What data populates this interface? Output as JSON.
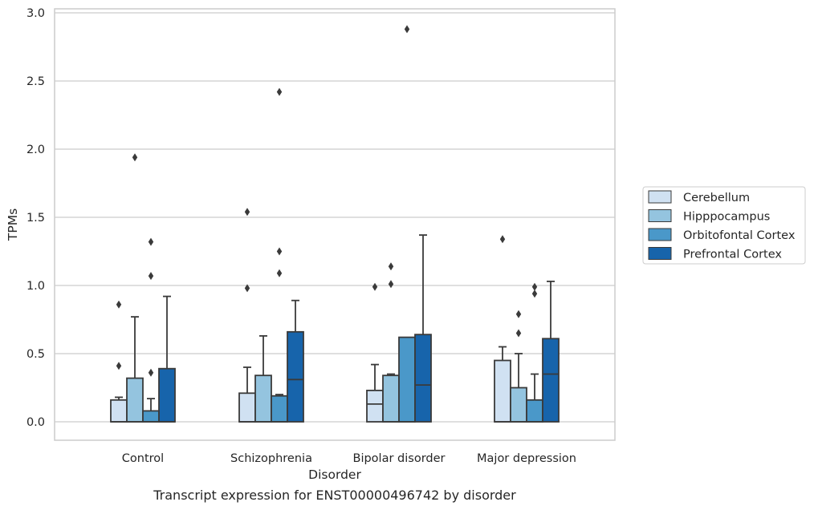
{
  "chart_data": {
    "type": "box",
    "title": "",
    "caption": "Transcript expression for ENST00000496742 by disorder",
    "xlabel": "Disorder",
    "ylabel": "TPMs",
    "ylim": [
      -0.14,
      3.03
    ],
    "yticks": [
      "0.0",
      "0.5",
      "1.0",
      "1.5",
      "2.0",
      "2.5",
      "3.0"
    ],
    "grid": "horizontal",
    "legend_position": "right",
    "categories": [
      "Control",
      "Schizophrenia",
      "Bipolar disorder",
      "Major depression"
    ],
    "series": [
      {
        "name": "Cerebellum",
        "color": "#d0e1f2",
        "boxes": [
          {
            "whisker_low": 0.0,
            "q1": 0.0,
            "median": 0.0,
            "q3": 0.16,
            "whisker_high": 0.18,
            "outliers": [
              0.41,
              0.86
            ]
          },
          {
            "whisker_low": 0.0,
            "q1": 0.0,
            "median": 0.0,
            "q3": 0.21,
            "whisker_high": 0.4,
            "outliers": [
              0.98,
              1.54
            ]
          },
          {
            "whisker_low": 0.0,
            "q1": 0.0,
            "median": 0.13,
            "q3": 0.23,
            "whisker_high": 0.42,
            "outliers": [
              0.99
            ]
          },
          {
            "whisker_low": 0.0,
            "q1": 0.0,
            "median": 0.0,
            "q3": 0.45,
            "whisker_high": 0.55,
            "outliers": [
              1.34
            ]
          }
        ]
      },
      {
        "name": "Hipppocampus",
        "color": "#94c4df",
        "boxes": [
          {
            "whisker_low": 0.0,
            "q1": 0.0,
            "median": 0.0,
            "q3": 0.32,
            "whisker_high": 0.77,
            "outliers": [
              1.94
            ]
          },
          {
            "whisker_low": 0.0,
            "q1": 0.0,
            "median": 0.0,
            "q3": 0.34,
            "whisker_high": 0.63,
            "outliers": []
          },
          {
            "whisker_low": 0.0,
            "q1": 0.0,
            "median": 0.0,
            "q3": 0.34,
            "whisker_high": 0.35,
            "outliers": [
              1.01,
              1.14
            ]
          },
          {
            "whisker_low": 0.0,
            "q1": 0.0,
            "median": 0.0,
            "q3": 0.25,
            "whisker_high": 0.5,
            "outliers": [
              0.65,
              0.79
            ]
          }
        ]
      },
      {
        "name": "Orbitofontal Cortex",
        "color": "#4a98c9",
        "boxes": [
          {
            "whisker_low": 0.0,
            "q1": 0.0,
            "median": 0.0,
            "q3": 0.08,
            "whisker_high": 0.17,
            "outliers": [
              0.36,
              1.07,
              1.32
            ]
          },
          {
            "whisker_low": 0.0,
            "q1": 0.0,
            "median": 0.0,
            "q3": 0.19,
            "whisker_high": 0.2,
            "outliers": [
              1.09,
              1.25,
              2.42
            ]
          },
          {
            "whisker_low": 0.0,
            "q1": 0.0,
            "median": 0.0,
            "q3": 0.62,
            "whisker_high": 0.62,
            "outliers": [
              2.88
            ]
          },
          {
            "whisker_low": 0.0,
            "q1": 0.0,
            "median": 0.0,
            "q3": 0.16,
            "whisker_high": 0.35,
            "outliers": [
              0.94,
              0.99
            ]
          }
        ]
      },
      {
        "name": "Prefrontal Cortex",
        "color": "#1764ab",
        "boxes": [
          {
            "whisker_low": 0.0,
            "q1": 0.0,
            "median": 0.0,
            "q3": 0.39,
            "whisker_high": 0.92,
            "outliers": []
          },
          {
            "whisker_low": 0.0,
            "q1": 0.0,
            "median": 0.31,
            "q3": 0.66,
            "whisker_high": 0.89,
            "outliers": []
          },
          {
            "whisker_low": 0.0,
            "q1": 0.0,
            "median": 0.27,
            "q3": 0.64,
            "whisker_high": 1.37,
            "outliers": []
          },
          {
            "whisker_low": 0.0,
            "q1": 0.0,
            "median": 0.35,
            "q3": 0.61,
            "whisker_high": 1.03,
            "outliers": []
          }
        ]
      }
    ]
  }
}
